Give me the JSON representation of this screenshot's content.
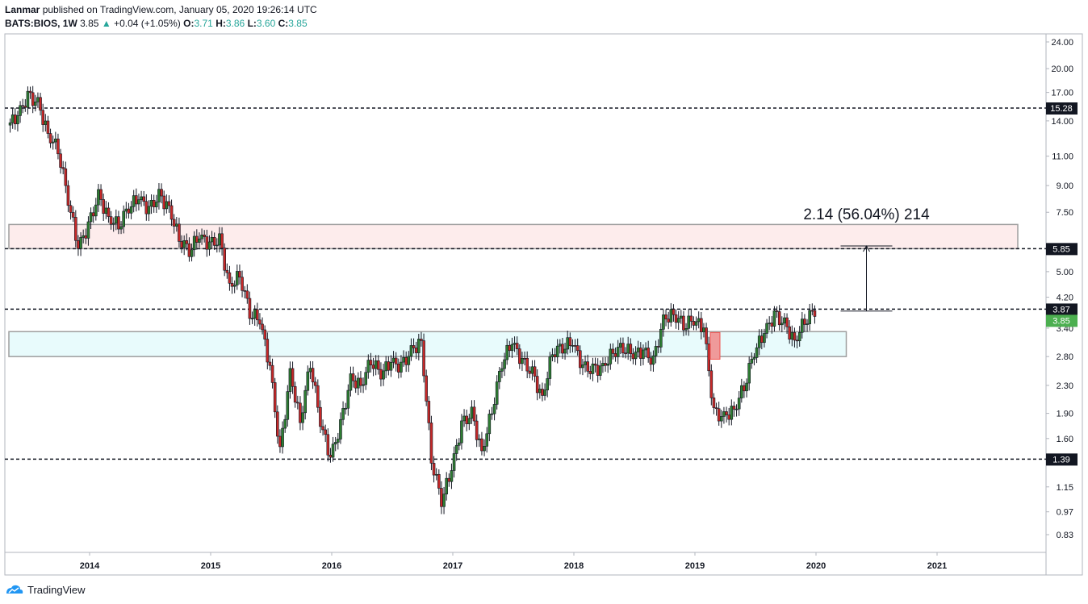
{
  "header": {
    "author": "Lanmar",
    "published_text": "published on TradingView.com, January 05, 2020 19:26:14 UTC",
    "symbol": "BATS:BIOS, 1W",
    "last": "3.85",
    "change": "+0.04 (+1.05%)",
    "o_label": "O:",
    "o_value": "3.71",
    "h_label": "H:",
    "h_value": "3.86",
    "l_label": "L:",
    "l_value": "3.60",
    "c_label": "C:",
    "c_value": "3.85"
  },
  "footer": {
    "brand": "TradingView",
    "logo_icon": "tradingview-logo-icon"
  },
  "colors": {
    "up": "#26a69a",
    "down": "#ef5350",
    "candle_body_up": "#2e7d32",
    "candle_body_down": "#c62828",
    "wick": "#131722",
    "resistance_zone": "#fdecec",
    "support_zone": "#e8fbfc",
    "zone_border": "#9e9e9e",
    "badge_dark": "#131722",
    "badge_price": "#4caf50",
    "red_highlight": "#ef9a9a"
  },
  "chart_data": {
    "type": "candlestick",
    "symbol": "BATS:BIOS",
    "interval": "1W",
    "y_scale": "log",
    "y_ticks": [
      "24.00",
      "20.00",
      "17.00",
      "14.00",
      "11.00",
      "9.00",
      "7.50",
      "5.00",
      "4.20",
      "3.40",
      "2.80",
      "2.30",
      "1.90",
      "1.60",
      "1.15",
      "0.97",
      "0.83"
    ],
    "x_ticks": [
      "2014",
      "2015",
      "2016",
      "2017",
      "2018",
      "2019",
      "2020",
      "2021"
    ],
    "horizontal_levels": [
      {
        "value": 15.28,
        "label": "15.28",
        "style": "dashed"
      },
      {
        "value": 5.85,
        "label": "5.85",
        "style": "dashed"
      },
      {
        "value": 3.87,
        "label": "3.87",
        "style": "dashed"
      },
      {
        "value": 1.39,
        "label": "1.39",
        "style": "dashed"
      }
    ],
    "last_price": {
      "value": 3.85,
      "label": "3.85"
    },
    "zones": [
      {
        "name": "resistance",
        "from": 5.85,
        "to": 6.9,
        "x_start": "2013-05",
        "x_end": "2021-09"
      },
      {
        "name": "support",
        "from": 2.8,
        "to": 3.32,
        "x_start": "2013-05",
        "x_end": "2020-04"
      }
    ],
    "measure": {
      "from": 3.82,
      "to": 5.96,
      "label": "2.14 (56.04%) 214",
      "x": "2020-06"
    },
    "highlight_candle": {
      "date": "2019-03",
      "open": 3.3,
      "close": 2.75
    },
    "series": [
      {
        "date": "2013-05",
        "close": 13.6
      },
      {
        "date": "2013-06",
        "close": 14.5
      },
      {
        "date": "2013-07",
        "close": 16.5
      },
      {
        "date": "2013-08",
        "close": 15.8
      },
      {
        "date": "2013-09",
        "close": 12.8
      },
      {
        "date": "2013-10",
        "close": 11.6
      },
      {
        "date": "2013-11",
        "close": 8.2
      },
      {
        "date": "2013-12",
        "close": 5.9
      },
      {
        "date": "2014-01",
        "close": 6.8
      },
      {
        "date": "2014-02",
        "close": 8.4
      },
      {
        "date": "2014-03",
        "close": 7.2
      },
      {
        "date": "2014-04",
        "close": 6.9
      },
      {
        "date": "2014-05",
        "close": 7.8
      },
      {
        "date": "2014-06",
        "close": 8.3
      },
      {
        "date": "2014-07",
        "close": 7.6
      },
      {
        "date": "2014-08",
        "close": 8.4
      },
      {
        "date": "2014-09",
        "close": 7.7
      },
      {
        "date": "2014-10",
        "close": 6.3
      },
      {
        "date": "2014-11",
        "close": 5.8
      },
      {
        "date": "2014-12",
        "close": 6.4
      },
      {
        "date": "2015-01",
        "close": 6.0
      },
      {
        "date": "2015-02",
        "close": 6.2
      },
      {
        "date": "2015-03",
        "close": 4.5
      },
      {
        "date": "2015-04",
        "close": 4.9
      },
      {
        "date": "2015-05",
        "close": 3.8
      },
      {
        "date": "2015-06",
        "close": 3.6
      },
      {
        "date": "2015-07",
        "close": 2.6
      },
      {
        "date": "2015-08",
        "close": 1.45
      },
      {
        "date": "2015-09",
        "close": 2.5
      },
      {
        "date": "2015-10",
        "close": 1.8
      },
      {
        "date": "2015-11",
        "close": 2.7
      },
      {
        "date": "2015-12",
        "close": 1.8
      },
      {
        "date": "2016-01",
        "close": 1.4
      },
      {
        "date": "2016-02",
        "close": 1.75
      },
      {
        "date": "2016-03",
        "close": 2.4
      },
      {
        "date": "2016-04",
        "close": 2.3
      },
      {
        "date": "2016-05",
        "close": 2.75
      },
      {
        "date": "2016-06",
        "close": 2.5
      },
      {
        "date": "2016-07",
        "close": 2.7
      },
      {
        "date": "2016-08",
        "close": 2.6
      },
      {
        "date": "2016-09",
        "close": 2.9
      },
      {
        "date": "2016-10",
        "close": 3.1
      },
      {
        "date": "2016-11",
        "close": 1.4
      },
      {
        "date": "2016-12",
        "close": 1.05
      },
      {
        "date": "2017-01",
        "close": 1.3
      },
      {
        "date": "2017-02",
        "close": 1.75
      },
      {
        "date": "2017-03",
        "close": 1.9
      },
      {
        "date": "2017-04",
        "close": 1.45
      },
      {
        "date": "2017-05",
        "close": 1.95
      },
      {
        "date": "2017-06",
        "close": 2.7
      },
      {
        "date": "2017-07",
        "close": 3.1
      },
      {
        "date": "2017-08",
        "close": 2.7
      },
      {
        "date": "2017-09",
        "close": 2.5
      },
      {
        "date": "2017-10",
        "close": 2.1
      },
      {
        "date": "2017-11",
        "close": 2.9
      },
      {
        "date": "2017-12",
        "close": 3.0
      },
      {
        "date": "2018-01",
        "close": 3.1
      },
      {
        "date": "2018-02",
        "close": 2.6
      },
      {
        "date": "2018-03",
        "close": 2.55
      },
      {
        "date": "2018-04",
        "close": 2.6
      },
      {
        "date": "2018-05",
        "close": 2.9
      },
      {
        "date": "2018-06",
        "close": 3.0
      },
      {
        "date": "2018-07",
        "close": 2.85
      },
      {
        "date": "2018-08",
        "close": 2.9
      },
      {
        "date": "2018-09",
        "close": 2.7
      },
      {
        "date": "2018-10",
        "close": 3.6
      },
      {
        "date": "2018-11",
        "close": 3.75
      },
      {
        "date": "2018-12",
        "close": 3.5
      },
      {
        "date": "2019-01",
        "close": 3.6
      },
      {
        "date": "2019-02",
        "close": 3.4
      },
      {
        "date": "2019-03",
        "close": 1.9
      },
      {
        "date": "2019-04",
        "close": 1.85
      },
      {
        "date": "2019-05",
        "close": 1.95
      },
      {
        "date": "2019-06",
        "close": 2.3
      },
      {
        "date": "2019-07",
        "close": 2.9
      },
      {
        "date": "2019-08",
        "close": 3.3
      },
      {
        "date": "2019-09",
        "close": 3.7
      },
      {
        "date": "2019-10",
        "close": 3.5
      },
      {
        "date": "2019-11",
        "close": 3.1
      },
      {
        "date": "2019-12",
        "close": 3.6
      },
      {
        "date": "2020-01",
        "close": 3.85
      }
    ]
  }
}
